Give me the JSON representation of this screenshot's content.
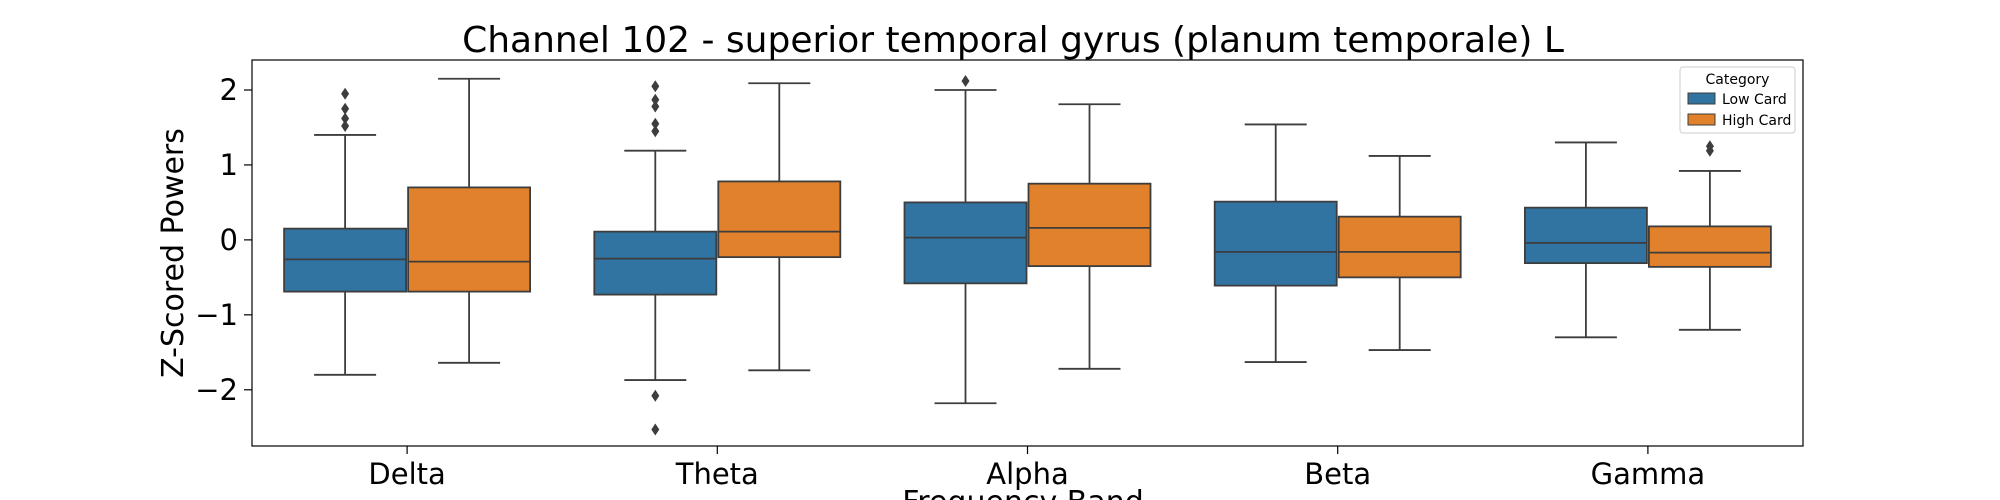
{
  "chart_data": {
    "type": "box",
    "title": "Channel 102 - superior temporal gyrus (planum temporale) L",
    "xlabel": "Frequency Band",
    "ylabel": "Z-Scored Powers",
    "ylim": [
      -2.75,
      2.4
    ],
    "yticks": [
      -2,
      -1,
      0,
      1,
      2
    ],
    "categories": [
      "Delta",
      "Theta",
      "Alpha",
      "Beta",
      "Gamma"
    ],
    "legend": {
      "title": "Category",
      "position": "top-right"
    },
    "grid": false,
    "series": [
      {
        "name": "Low Card",
        "color": "#3274a1",
        "boxes": [
          {
            "whisker_low": -1.8,
            "q1": -0.69,
            "median": -0.26,
            "q3": 0.15,
            "whisker_high": 1.4,
            "outliers": [
              1.95,
              1.75,
              1.62,
              1.52
            ]
          },
          {
            "whisker_low": -1.87,
            "q1": -0.73,
            "median": -0.25,
            "q3": 0.11,
            "whisker_high": 1.19,
            "outliers": [
              2.05,
              1.87,
              1.78,
              1.55,
              1.45,
              -2.08,
              -2.53
            ]
          },
          {
            "whisker_low": -2.18,
            "q1": -0.58,
            "median": 0.03,
            "q3": 0.5,
            "whisker_high": 2.0,
            "outliers": [
              2.12
            ]
          },
          {
            "whisker_low": -1.63,
            "q1": -0.61,
            "median": -0.16,
            "q3": 0.51,
            "whisker_high": 1.54,
            "outliers": []
          },
          {
            "whisker_low": -1.3,
            "q1": -0.31,
            "median": -0.04,
            "q3": 0.43,
            "whisker_high": 1.3,
            "outliers": []
          }
        ]
      },
      {
        "name": "High Card",
        "color": "#e1812c",
        "boxes": [
          {
            "whisker_low": -1.64,
            "q1": -0.69,
            "median": -0.29,
            "q3": 0.7,
            "whisker_high": 2.15,
            "outliers": []
          },
          {
            "whisker_low": -1.74,
            "q1": -0.23,
            "median": 0.11,
            "q3": 0.78,
            "whisker_high": 2.09,
            "outliers": []
          },
          {
            "whisker_low": -1.72,
            "q1": -0.35,
            "median": 0.16,
            "q3": 0.75,
            "whisker_high": 1.81,
            "outliers": []
          },
          {
            "whisker_low": -1.47,
            "q1": -0.5,
            "median": -0.16,
            "q3": 0.31,
            "whisker_high": 1.12,
            "outliers": []
          },
          {
            "whisker_low": -1.2,
            "q1": -0.36,
            "median": -0.17,
            "q3": 0.18,
            "whisker_high": 0.92,
            "outliers": [
              1.25,
              1.19
            ]
          }
        ]
      }
    ]
  }
}
